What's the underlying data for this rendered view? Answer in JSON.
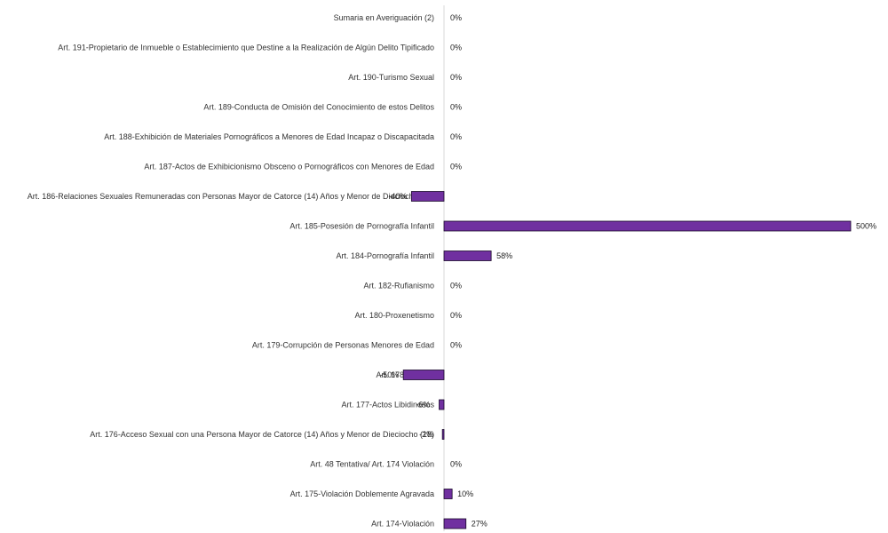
{
  "chart_data": {
    "type": "bar",
    "orientation": "horizontal",
    "categories": [
      "Sumaria en Averiguación (2)",
      "Art. 191-Propietario de Inmueble o Establecimiento que Destine a la Realización de Algún Delito Tipificado",
      "Art. 190-Turismo Sexual",
      "Art. 189-Conducta de Omisión del Conocimiento de estos Delitos",
      "Art. 188-Exhibición de Materiales Pornográficos a Menores de Edad Incapaz o Discapacitada",
      "Art. 187-Actos de Exhibicionismo Obsceno o Pornográficos con Menores de Edad",
      "Art. 186-Relaciones Sexuales Remuneradas con Personas Mayor de Catorce (14) Años y Menor de Dieciocho (18)",
      "Art. 185-Posesión de Pornografía Infantil",
      "Art. 184-Pornografía Infantil",
      "Art. 182-Rufianismo",
      "Art. 180-Proxenetismo",
      "Art. 179-Corrupción de Personas Menores de Edad",
      "Art. 178-Estupro",
      "Art. 177-Actos Libidinosos",
      "Art. 176-Acceso Sexual con una Persona Mayor de Catorce (14) Años y Menor de Dieciocho (18)",
      "Art. 48 Tentativa/ Art. 174 Violación",
      "Art. 175-Violación Doblemente Agravada",
      "Art. 174-Violación"
    ],
    "values": [
      0,
      0,
      0,
      0,
      0,
      0,
      -40,
      500,
      58,
      0,
      0,
      0,
      -50,
      -6,
      -2,
      0,
      10,
      27
    ],
    "value_labels": [
      "0%",
      "0%",
      "0%",
      "0%",
      "0%",
      "0%",
      "-40%",
      "500%",
      "58%",
      "0%",
      "0%",
      "0%",
      "-50%",
      "-6%",
      "-2%",
      "0%",
      "10%",
      "27%"
    ],
    "value_unit": "%",
    "xlim": [
      -50,
      500
    ],
    "grid": false,
    "legend": "none",
    "bar_color": "#7030A0",
    "bar_edge_color": "#1a0a2a",
    "axis_color": "#d9d9d9"
  }
}
